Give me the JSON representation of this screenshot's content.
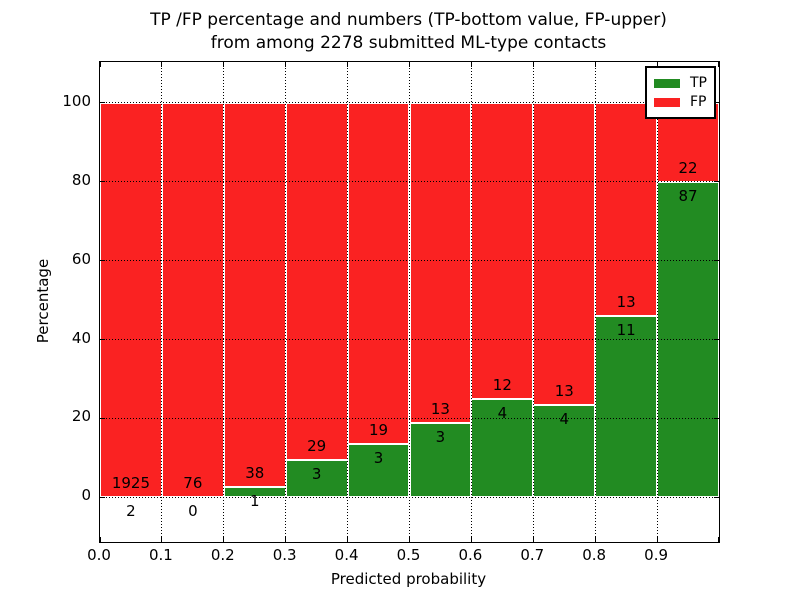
{
  "chart_data": {
    "type": "bar",
    "stacked": true,
    "title_line1": "TP /FP percentage and numbers (TP-bottom value, FP-upper)",
    "title_line2": "from among 2278 submitted ML-type contacts",
    "xlabel": "Predicted probability",
    "ylabel": "Percentage",
    "total_contacts": 2278,
    "bin_width": 0.1,
    "x_tick_labels": [
      "0.0",
      "0.1",
      "0.2",
      "0.3",
      "0.4",
      "0.5",
      "0.6",
      "0.7",
      "0.8",
      "0.9"
    ],
    "y_tick_labels": [
      "0",
      "20",
      "40",
      "60",
      "80",
      "100"
    ],
    "y_ticks": [
      0,
      20,
      40,
      60,
      80,
      100
    ],
    "ylim": [
      -11.3,
      110.3
    ],
    "grid": "dotted black, both axes",
    "legend_position": "upper right",
    "series": [
      {
        "name": "TP",
        "color": "#228b22",
        "counts": [
          2,
          0,
          1,
          3,
          3,
          3,
          4,
          4,
          11,
          87
        ]
      },
      {
        "name": "FP",
        "color": "#fa2222",
        "counts": [
          1925,
          76,
          38,
          29,
          19,
          13,
          12,
          13,
          13,
          22
        ]
      }
    ],
    "note": "bars stacked to 100% per bin; TP percentage = TP/(TP+FP)*100"
  },
  "colors": {
    "tp_green": "#228b22",
    "fp_red": "#fa2222",
    "grid": "#000000",
    "background": "#ffffff"
  }
}
